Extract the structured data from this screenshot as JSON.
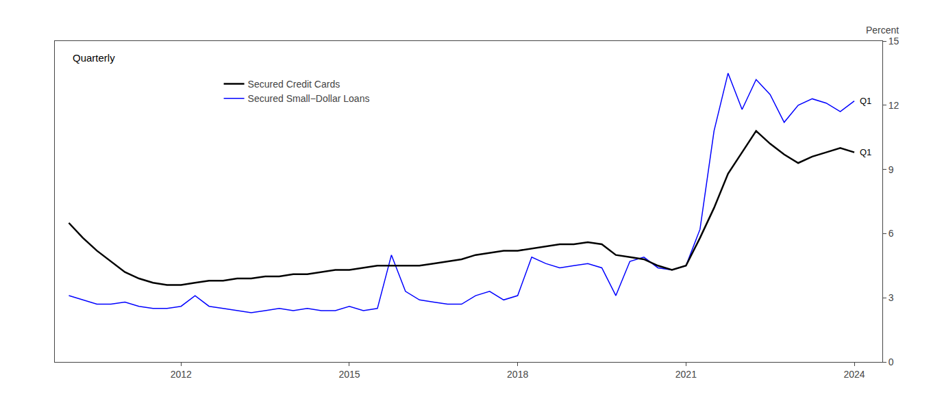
{
  "chart_data": {
    "type": "line",
    "ylabel": "Percent",
    "annotations": [
      {
        "text": "Quarterly"
      },
      {
        "text": "Q1",
        "x": 2024.0,
        "y": 12.2
      },
      {
        "text": "Q1",
        "x": 2024.0,
        "y": 9.8
      }
    ],
    "x": [
      2010.0,
      2010.25,
      2010.5,
      2010.75,
      2011.0,
      2011.25,
      2011.5,
      2011.75,
      2012.0,
      2012.25,
      2012.5,
      2012.75,
      2013.0,
      2013.25,
      2013.5,
      2013.75,
      2014.0,
      2014.25,
      2014.5,
      2014.75,
      2015.0,
      2015.25,
      2015.5,
      2015.75,
      2016.0,
      2016.25,
      2016.5,
      2016.75,
      2017.0,
      2017.25,
      2017.5,
      2017.75,
      2018.0,
      2018.25,
      2018.5,
      2018.75,
      2019.0,
      2019.25,
      2019.5,
      2019.75,
      2020.0,
      2020.25,
      2020.5,
      2020.75,
      2021.0,
      2021.25,
      2021.5,
      2021.75,
      2022.0,
      2022.25,
      2022.5,
      2022.75,
      2023.0,
      2023.25,
      2023.5,
      2023.75,
      2024.0
    ],
    "series": [
      {
        "name": "Secured Credit Cards",
        "color": "#000000",
        "values": [
          6.5,
          5.8,
          5.2,
          4.7,
          4.2,
          3.9,
          3.7,
          3.6,
          3.6,
          3.7,
          3.8,
          3.8,
          3.9,
          3.9,
          4.0,
          4.0,
          4.1,
          4.1,
          4.2,
          4.3,
          4.3,
          4.4,
          4.5,
          4.5,
          4.5,
          4.5,
          4.6,
          4.7,
          4.8,
          5.0,
          5.1,
          5.2,
          5.2,
          5.3,
          5.4,
          5.5,
          5.5,
          5.6,
          5.5,
          5.0,
          4.9,
          4.8,
          4.5,
          4.3,
          4.5,
          5.8,
          7.2,
          8.8,
          9.8,
          10.8,
          10.2,
          9.7,
          9.3,
          9.6,
          9.8,
          10.0,
          9.8
        ]
      },
      {
        "name": "Secured Small−Dollar Loans",
        "color": "#0000ff",
        "values": [
          3.1,
          2.9,
          2.7,
          2.7,
          2.8,
          2.6,
          2.5,
          2.5,
          2.6,
          3.1,
          2.6,
          2.5,
          2.4,
          2.3,
          2.4,
          2.5,
          2.4,
          2.5,
          2.4,
          2.4,
          2.6,
          2.4,
          2.5,
          5.0,
          3.3,
          2.9,
          2.8,
          2.7,
          2.7,
          3.1,
          3.3,
          2.9,
          3.1,
          4.9,
          4.6,
          4.4,
          4.5,
          4.6,
          4.4,
          3.1,
          4.7,
          4.9,
          4.4,
          4.3,
          4.5,
          6.2,
          10.8,
          13.5,
          11.8,
          13.2,
          12.5,
          11.2,
          12.0,
          12.3,
          12.1,
          11.7,
          12.2
        ]
      }
    ],
    "xlim": [
      2009.75,
      2024.5
    ],
    "xticks": [
      2012,
      2015,
      2018,
      2021,
      2024
    ],
    "ylim": [
      0,
      15
    ],
    "yticks": [
      0,
      3,
      6,
      9,
      12,
      15
    ],
    "grid": false,
    "legend": "upper left"
  }
}
